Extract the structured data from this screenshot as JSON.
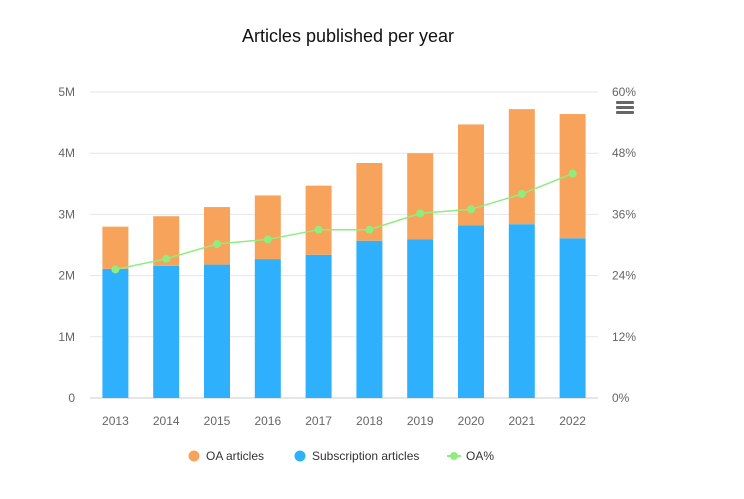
{
  "chart_data": {
    "type": "bar",
    "title": "Articles published per year",
    "categories": [
      "2013",
      "2014",
      "2015",
      "2016",
      "2017",
      "2018",
      "2019",
      "2020",
      "2021",
      "2022"
    ],
    "stacked": true,
    "series": [
      {
        "name": "Subscription articles",
        "type": "bar",
        "axis": "left",
        "color": "#2eb0fc",
        "values": [
          2.11,
          2.16,
          2.18,
          2.27,
          2.34,
          2.57,
          2.59,
          2.82,
          2.84,
          2.61
        ]
      },
      {
        "name": "OA articles",
        "type": "bar",
        "axis": "left",
        "color": "#f7a35c",
        "values": [
          0.69,
          0.81,
          0.94,
          1.04,
          1.13,
          1.27,
          1.41,
          1.65,
          1.88,
          2.03
        ]
      },
      {
        "name": "OA%",
        "type": "line",
        "axis": "right",
        "color": "#90ed7d",
        "values": [
          25.2,
          27.3,
          30.2,
          31.1,
          33.0,
          33.0,
          36.2,
          37.0,
          40.0,
          44.0
        ]
      }
    ],
    "y_left": {
      "ylim": [
        0,
        5
      ],
      "ticks": [
        "0",
        "1M",
        "2M",
        "3M",
        "4M",
        "5M"
      ]
    },
    "y_right": {
      "ylim": [
        0,
        60
      ],
      "ticks": [
        "0%",
        "12%",
        "24%",
        "36%",
        "48%",
        "60%"
      ]
    },
    "legend": {
      "placement": "bottom-center",
      "items": [
        {
          "label": "OA articles",
          "color": "#f7a35c",
          "marker": "circle"
        },
        {
          "label": "Subscription articles",
          "color": "#2eb0fc",
          "marker": "circle"
        },
        {
          "label": "OA%",
          "color": "#90ed7d",
          "marker": "line-circle"
        }
      ]
    },
    "grid": true
  },
  "toolbar": {
    "menu_icon": "hamburger-menu-icon"
  }
}
